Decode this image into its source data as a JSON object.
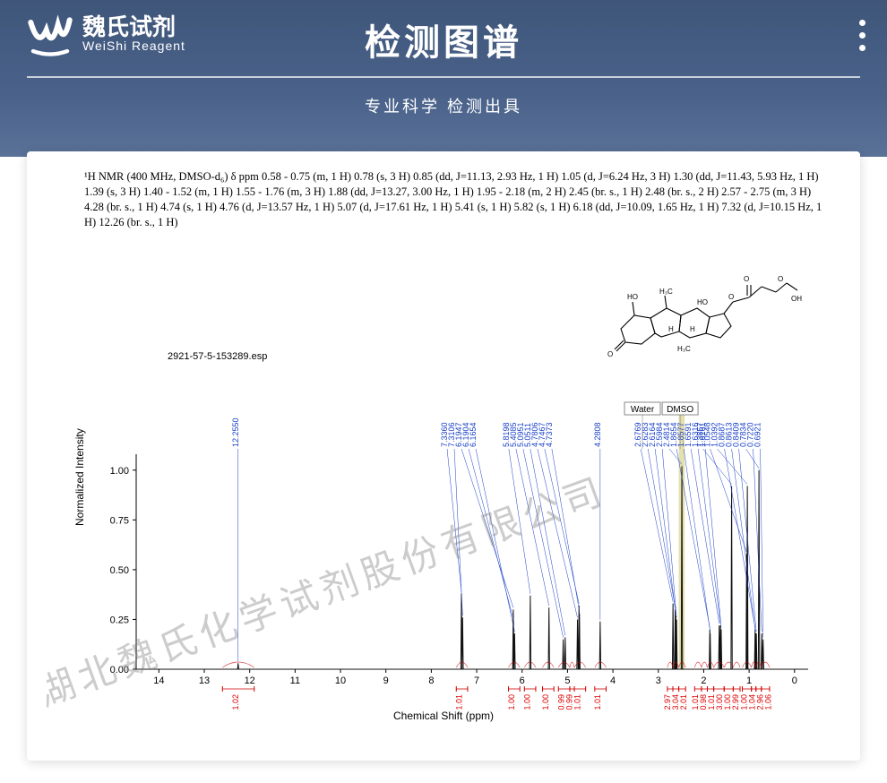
{
  "header": {
    "brand_cn": "魏氏试剂",
    "brand_en": "WeiShi Reagent",
    "title": "检测图谱",
    "subtitle": "专业科学  检测出具"
  },
  "nmr_description": "¹H NMR (400 MHz, DMSO-d₆) δ ppm 0.58 - 0.75 (m, 1 H) 0.78 (s, 3 H) 0.85 (dd, J=11.13, 2.93 Hz, 1 H) 1.05 (d, J=6.24 Hz, 3 H) 1.30 (dd, J=11.43, 5.93 Hz, 1 H) 1.39 (s, 3 H) 1.40 - 1.52 (m, 1 H) 1.55 - 1.76 (m, 3 H) 1.88 (dd, J=13.27, 3.00 Hz, 1 H) 1.95 - 2.18 (m, 2 H) 2.45 (br. s., 1 H) 2.48 (br. s., 2 H) 2.57 - 2.75 (m, 3 H) 4.28 (br. s., 1 H) 4.74 (s, 1 H) 4.76 (d, J=13.57 Hz, 1 H) 5.07 (d, J=17.61 Hz, 1 H) 5.41 (s, 1 H) 5.82 (s, 1 H) 6.18 (dd, J=10.09, 1.65 Hz, 1 H) 7.32 (d, J=10.15 Hz, 1 H) 12.26 (br. s., 1 H)",
  "watermark_text": "湖北魏氏化学试剂股份有限公司",
  "spectrum": {
    "esp_title": "2921-57-5-153289.esp",
    "type": "nmr-line",
    "xlabel": "Chemical Shift (ppm)",
    "ylabel": "Normalized Intensity",
    "xlim": [
      14.5,
      -0.3
    ],
    "ylim": [
      0,
      1.08
    ],
    "yticks": [
      0,
      0.25,
      0.5,
      0.75,
      1.0
    ],
    "xticks": [
      14,
      13,
      12,
      11,
      10,
      9,
      8,
      7,
      6,
      5,
      4,
      3,
      2,
      1,
      0
    ],
    "baseline_color": "#333333",
    "axis_color": "#000000",
    "grid_color": "#cccccc",
    "peak_label_color": "#1a40c7",
    "integral_color": "#d00000",
    "background_color": "#ffffff",
    "solvent_labels": [
      {
        "text": "Water",
        "ppm": 3.35
      },
      {
        "text": "DMSO",
        "ppm": 2.52
      }
    ],
    "dmso_band_color": "#c9c060",
    "peaks": [
      {
        "ppm": 12.255,
        "h": 0.03,
        "label": "12.2550"
      },
      {
        "ppm": 7.336,
        "h": 0.38,
        "label": "7.3360"
      },
      {
        "ppm": 7.3106,
        "h": 0.26,
        "label": "7.3106"
      },
      {
        "ppm": 6.1947,
        "h": 0.3,
        "label": "6.1947"
      },
      {
        "ppm": 6.1904,
        "h": 0.24,
        "label": "6.1904"
      },
      {
        "ppm": 6.1654,
        "h": 0.18,
        "label": "6.1654"
      },
      {
        "ppm": 5.8198,
        "h": 0.37,
        "label": "5.8198"
      },
      {
        "ppm": 5.4085,
        "h": 0.31,
        "label": "5.4085"
      },
      {
        "ppm": 5.0951,
        "h": 0.15,
        "label": "5.0951"
      },
      {
        "ppm": 5.0511,
        "h": 0.16,
        "label": "5.0511"
      },
      {
        "ppm": 4.7806,
        "h": 0.25,
        "label": "4.7806"
      },
      {
        "ppm": 4.7467,
        "h": 0.32,
        "label": "4.7467"
      },
      {
        "ppm": 4.7373,
        "h": 0.28,
        "label": "4.7373"
      },
      {
        "ppm": 4.2808,
        "h": 0.24,
        "label": "4.2808"
      },
      {
        "ppm": 2.6769,
        "h": 0.33,
        "label": "2.6769"
      },
      {
        "ppm": 2.6283,
        "h": 0.3,
        "label": "2.6283"
      },
      {
        "ppm": 2.6164,
        "h": 0.27,
        "label": "2.6164"
      },
      {
        "ppm": 2.5984,
        "h": 0.25,
        "label": "2.5984"
      },
      {
        "ppm": 2.4814,
        "h": 1.02,
        "label": "2.4814"
      },
      {
        "ppm": 1.8654,
        "h": 0.2,
        "label": "1.8654"
      },
      {
        "ppm": 1.8577,
        "h": 0.18,
        "label": "1.8577"
      },
      {
        "ppm": 1.6591,
        "h": 0.22,
        "label": "1.6591"
      },
      {
        "ppm": 1.6316,
        "h": 0.22,
        "label": "1.6316"
      },
      {
        "ppm": 1.6161,
        "h": 0.2,
        "label": "1.6161"
      },
      {
        "ppm": 1.3857,
        "h": 0.92,
        "label": "1.3857"
      },
      {
        "ppm": 1.0548,
        "h": 0.58,
        "label": "1.0548"
      },
      {
        "ppm": 1.0392,
        "h": 0.92,
        "label": "1.0392"
      },
      {
        "ppm": 0.8687,
        "h": 0.2,
        "label": "0.8687"
      },
      {
        "ppm": 0.8613,
        "h": 0.18,
        "label": "0.8613"
      },
      {
        "ppm": 0.8409,
        "h": 0.18,
        "label": "0.8409"
      },
      {
        "ppm": 0.7834,
        "h": 1.0,
        "label": "0.7834"
      },
      {
        "ppm": 0.722,
        "h": 0.18,
        "label": "0.7220"
      },
      {
        "ppm": 0.6921,
        "h": 0.15,
        "label": "0.6921"
      }
    ],
    "integrals": [
      {
        "from": 12.6,
        "to": 11.9,
        "value": "1.02"
      },
      {
        "from": 7.45,
        "to": 7.2,
        "value": "1.01"
      },
      {
        "from": 6.3,
        "to": 6.05,
        "value": "1.00"
      },
      {
        "from": 5.95,
        "to": 5.7,
        "value": "1.00"
      },
      {
        "from": 5.55,
        "to": 5.3,
        "value": "1.00"
      },
      {
        "from": 5.2,
        "to": 4.95,
        "value": "0.99"
      },
      {
        "from": 4.95,
        "to": 4.85,
        "value": "0.99"
      },
      {
        "from": 4.85,
        "to": 4.6,
        "value": "1.01"
      },
      {
        "from": 4.4,
        "to": 4.15,
        "value": "1.01"
      },
      {
        "from": 2.8,
        "to": 2.68,
        "value": "2.97"
      },
      {
        "from": 2.68,
        "to": 2.55,
        "value": "3.04"
      },
      {
        "from": 2.55,
        "to": 2.4,
        "value": "2.01"
      },
      {
        "from": 2.2,
        "to": 2.05,
        "value": "1.01"
      },
      {
        "from": 2.05,
        "to": 1.92,
        "value": "0.98"
      },
      {
        "from": 1.92,
        "to": 1.78,
        "value": "1.01"
      },
      {
        "from": 1.78,
        "to": 1.55,
        "value": "3.00"
      },
      {
        "from": 1.55,
        "to": 1.35,
        "value": "1.00"
      },
      {
        "from": 1.35,
        "to": 1.2,
        "value": "2.99"
      },
      {
        "from": 1.15,
        "to": 0.95,
        "value": "1.00"
      },
      {
        "from": 0.95,
        "to": 0.85,
        "value": "1.04"
      },
      {
        "from": 0.85,
        "to": 0.73,
        "value": "2.96"
      },
      {
        "from": 0.73,
        "to": 0.55,
        "value": "1.06"
      }
    ]
  },
  "molecule_labels": [
    "HO",
    "H₃C",
    "H₃C",
    "HO",
    "O",
    "O",
    "O",
    "OH",
    "H",
    "H",
    "H",
    "H₃C",
    "O"
  ]
}
